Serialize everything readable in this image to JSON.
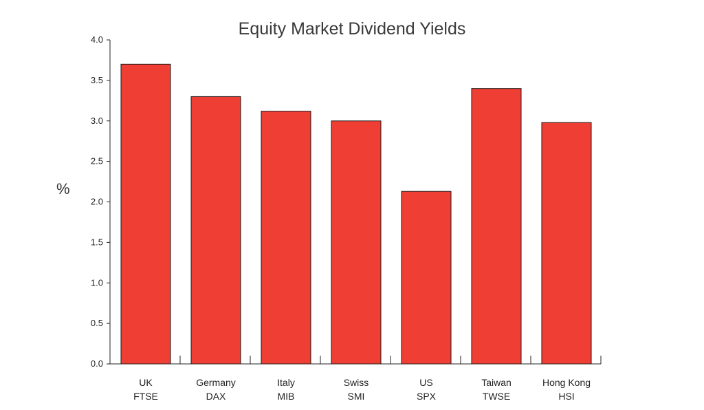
{
  "chart_data": {
    "type": "bar",
    "title": "Equity Market Dividend Yields",
    "xlabel": "",
    "ylabel": "%",
    "ylim": [
      0,
      4.0
    ],
    "yticks": [
      "0.0",
      "0.5",
      "1.0",
      "1.5",
      "2.0",
      "2.5",
      "3.0",
      "3.5",
      "4.0"
    ],
    "categories": [
      [
        "UK",
        "FTSE"
      ],
      [
        "Germany",
        "DAX"
      ],
      [
        "Italy",
        "MIB"
      ],
      [
        "Swiss",
        "SMI"
      ],
      [
        "US",
        "SPX"
      ],
      [
        "Taiwan",
        "TWSE"
      ],
      [
        "Hong Kong",
        "HSI"
      ]
    ],
    "values": [
      3.7,
      3.3,
      3.12,
      3.0,
      2.13,
      3.4,
      2.98
    ],
    "bar_color": "#ef3f35",
    "grid": false,
    "legend": "none"
  }
}
